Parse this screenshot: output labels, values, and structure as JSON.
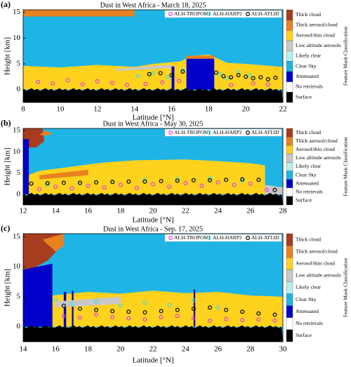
{
  "chart_data": [
    {
      "type": "scatter",
      "panel_label": "(a)",
      "title": "Dust in West Africa - March 18, 2025",
      "xlabel": "Latitude [°N]",
      "ylabel": "Height [km]",
      "colorbar_title": "Feature Mask Classification",
      "xlim": [
        8,
        22
      ],
      "xticks": [
        8,
        10,
        12,
        14,
        16,
        18,
        20,
        22
      ],
      "ylim": [
        -2.5,
        15.5
      ],
      "yticks": [
        0,
        5,
        10,
        15
      ],
      "classes": [
        {
          "name": "Thick cloud",
          "color": "#a83c1e"
        },
        {
          "name": "Thick aerosol/cloud",
          "color": "#e8821e"
        },
        {
          "name": "Aerosol/thin cloud",
          "color": "#ffd21e"
        },
        {
          "name": "Low altitude aerosols",
          "color": "#c8c8c8"
        },
        {
          "name": "Likely clear",
          "color": "#b4f0f0"
        },
        {
          "name": "Clear Sky",
          "color": "#1eb4e6"
        },
        {
          "name": "Attenuated",
          "color": "#0000c8"
        },
        {
          "name": "No retrievals",
          "color": "#ffffff"
        },
        {
          "name": "Surface",
          "color": "#000000"
        }
      ],
      "series": [
        {
          "name": "ALH-TROPOMI",
          "color": "#e040e0",
          "x": [
            8.8,
            9.6,
            10.4,
            11.2,
            12.0,
            12.8,
            13.6,
            14.6,
            15.5,
            16.4,
            19.2,
            20.4,
            21.2
          ],
          "values": [
            1.5,
            1.2,
            1.8,
            1.0,
            1.6,
            1.3,
            0.9,
            1.1,
            1.4,
            1.7,
            0.9,
            1.2,
            1.0
          ]
        },
        {
          "name": "ALH-HARP2",
          "color": "#40e0e0",
          "x": [
            14.2,
            15.0,
            15.8,
            16.6,
            18.6,
            19.0,
            19.6,
            20.2
          ],
          "values": [
            2.6,
            3.2,
            2.4,
            3.8,
            3.0,
            2.2,
            3.4,
            2.8
          ]
        },
        {
          "name": "ALH-ATLID",
          "color": "#000000",
          "x": [
            14.8,
            15.4,
            16.0,
            16.6,
            18.4,
            18.8,
            19.2,
            19.6,
            20.0,
            20.4,
            20.8,
            21.2,
            21.6
          ],
          "values": [
            3.0,
            3.2,
            2.8,
            3.5,
            3.3,
            2.6,
            2.4,
            2.8,
            2.5,
            2.2,
            2.4,
            2.0,
            2.3
          ]
        }
      ]
    },
    {
      "type": "scatter",
      "panel_label": "(b)",
      "title": "Dust in West Africa - May 30, 2025",
      "xlabel": "Latitude [°N]",
      "ylabel": "Height [km]",
      "colorbar_title": "Feature Mask Classification",
      "xlim": [
        12,
        28
      ],
      "xticks": [
        12,
        14,
        16,
        18,
        20,
        22,
        24,
        26,
        28
      ],
      "ylim": [
        -2.5,
        15.5
      ],
      "yticks": [
        0,
        5,
        10,
        15
      ],
      "classes": [
        {
          "name": "Thick cloud",
          "color": "#a83c1e"
        },
        {
          "name": "Thick aerosol/cloud",
          "color": "#e8821e"
        },
        {
          "name": "Aerosol/thin cloud",
          "color": "#ffd21e"
        },
        {
          "name": "Low altitude aerosols",
          "color": "#c8c8c8"
        },
        {
          "name": "Likely clear",
          "color": "#b4f0f0"
        },
        {
          "name": "Clear Sky",
          "color": "#1eb4e6"
        },
        {
          "name": "Attenuated",
          "color": "#0000c8"
        },
        {
          "name": "No retrievals",
          "color": "#ffffff"
        },
        {
          "name": "Surface",
          "color": "#000000"
        }
      ],
      "series": [
        {
          "name": "ALH-TROPOMI",
          "color": "#e040e0",
          "x": [
            13,
            14,
            15,
            16,
            17,
            18,
            19,
            20,
            21,
            22,
            23,
            24,
            25,
            26,
            27
          ],
          "values": [
            1.2,
            1.8,
            1.4,
            2.0,
            1.6,
            2.2,
            1.5,
            2.4,
            1.8,
            2.6,
            2.0,
            2.8,
            2.2,
            2.5,
            1.0
          ]
        },
        {
          "name": "ALH-HARP2",
          "color": "#40e0e0",
          "x": [
            13.5,
            15.5,
            17.5,
            19.5,
            21.5,
            23.5,
            25.5
          ],
          "values": [
            2.2,
            2.6,
            3.0,
            3.4,
            3.6,
            3.8,
            3.2
          ]
        },
        {
          "name": "ALH-ATLID",
          "color": "#000000",
          "x": [
            12.5,
            13.5,
            14.5,
            15.5,
            16.5,
            17.5,
            18.5,
            19.5,
            20.5,
            21.5,
            22.5,
            23.5,
            24.5,
            25.5,
            26.5,
            27.5
          ],
          "values": [
            2.5,
            2.6,
            2.7,
            2.7,
            2.8,
            2.9,
            3.0,
            3.0,
            3.1,
            3.2,
            3.3,
            3.3,
            3.4,
            3.5,
            3.4,
            1.0
          ]
        }
      ]
    },
    {
      "type": "scatter",
      "panel_label": "(c)",
      "title": "Dust in West Africa - Sep. 17, 2025",
      "xlabel": "Latitude [°N]",
      "ylabel": "Height [km]",
      "colorbar_title": "Feature Mask Classification",
      "xlim": [
        14,
        30
      ],
      "xticks": [
        14,
        16,
        18,
        20,
        22,
        24,
        26,
        28,
        30
      ],
      "ylim": [
        -2.5,
        15.5
      ],
      "yticks": [
        0,
        5,
        10,
        15
      ],
      "classes": [
        {
          "name": "Thick cloud",
          "color": "#a83c1e"
        },
        {
          "name": "Thick aerosol/cloud",
          "color": "#e8821e"
        },
        {
          "name": "Aerosol/thin cloud",
          "color": "#ffd21e"
        },
        {
          "name": "Low altitude aerosols",
          "color": "#c8c8c8"
        },
        {
          "name": "Likely clear",
          "color": "#b4f0f0"
        },
        {
          "name": "Clear Sky",
          "color": "#1eb4e6"
        },
        {
          "name": "Attenuated",
          "color": "#0000c8"
        },
        {
          "name": "No retrievals",
          "color": "#ffffff"
        },
        {
          "name": "Surface",
          "color": "#000000"
        }
      ],
      "series": [
        {
          "name": "ALH-TROPOMI",
          "color": "#e040e0",
          "x": [
            16.5,
            17.5,
            18.5,
            19.5,
            20.5,
            21.5,
            22.5,
            23.5,
            24.5,
            25.5,
            26.5,
            27.5,
            28.5,
            29.5
          ],
          "values": [
            1.8,
            1.5,
            2.0,
            1.6,
            1.4,
            1.2,
            1.6,
            1.8,
            1.4,
            1.0,
            1.3,
            1.1,
            1.2,
            1.0
          ]
        },
        {
          "name": "ALH-HARP2",
          "color": "#40e0e0",
          "x": [
            16,
            17,
            18.5,
            20,
            21.5,
            23,
            24.5,
            26
          ],
          "values": [
            4.5,
            3.8,
            4.2,
            3.5,
            4.0,
            3.6,
            4.4,
            3.2
          ]
        },
        {
          "name": "ALH-ATLID",
          "color": "#000000",
          "x": [
            16.5,
            17.5,
            18.5,
            19.5,
            20.5,
            21.5,
            22.5,
            23.5,
            24.5,
            25.5,
            26.5,
            27.5,
            28.5,
            29.5
          ],
          "values": [
            3.5,
            3.0,
            2.8,
            2.6,
            2.5,
            2.4,
            2.6,
            2.8,
            3.0,
            3.2,
            2.8,
            2.5,
            2.2,
            2.0
          ]
        }
      ]
    }
  ]
}
